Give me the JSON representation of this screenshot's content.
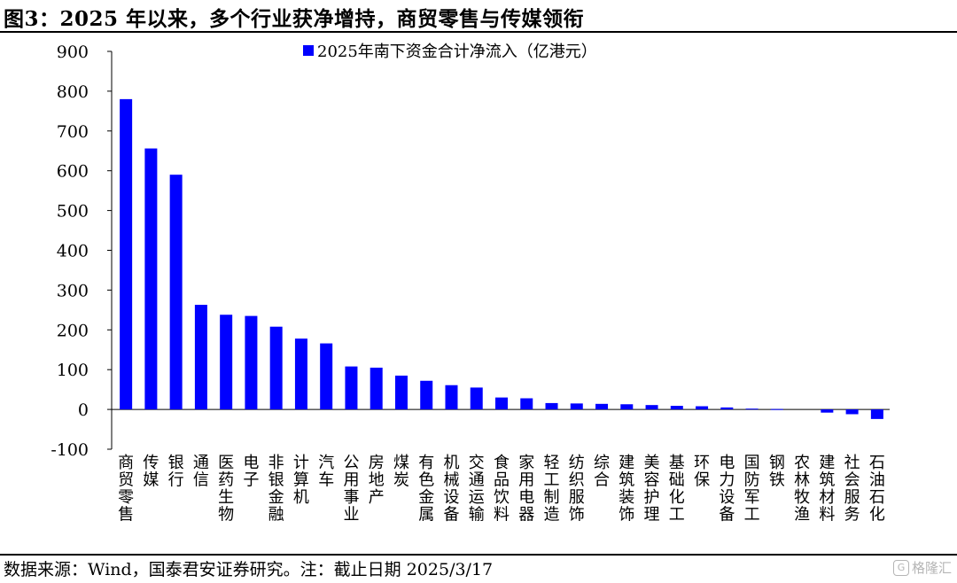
{
  "header": {
    "title": "图3：2025 年以来，多个行业获净增持，商贸零售与传媒领衔"
  },
  "footer": {
    "source": "数据来源：Wind，国泰君安证券研究。注：截止日期 2025/3/17",
    "watermark": "格隆汇"
  },
  "colors": {
    "bar": "#0000ff"
  },
  "chart_data": {
    "type": "bar",
    "categories": [
      "商贸零售",
      "传媒",
      "银行",
      "通信",
      "医药生物",
      "电子",
      "非银金融",
      "计算机",
      "汽车",
      "公用事业",
      "房地产",
      "煤炭",
      "有色金属",
      "机械设备",
      "交通运输",
      "食品饮料",
      "家用电器",
      "轻工制造",
      "纺织服饰",
      "综合",
      "建筑装饰",
      "美容护理",
      "基础化工",
      "环保",
      "电力设备",
      "国防军工",
      "钢铁",
      "农林牧渔",
      "建筑材料",
      "社会服务",
      "石油石化"
    ],
    "series": [
      {
        "name": "2025年南下资金合计净流入（亿港元）",
        "values": [
          780,
          656,
          590,
          263,
          238,
          235,
          208,
          178,
          166,
          108,
          105,
          85,
          72,
          61,
          55,
          30,
          28,
          16,
          15,
          14,
          13,
          11,
          9,
          8,
          5,
          2,
          1,
          0,
          -8,
          -12,
          -24
        ]
      }
    ],
    "yticks": [
      "900",
      "800",
      "700",
      "600",
      "500",
      "400",
      "300",
      "200",
      "100",
      "0",
      "-100"
    ],
    "ylim": [
      -100,
      900
    ],
    "legend_position": "top",
    "grid": false
  }
}
